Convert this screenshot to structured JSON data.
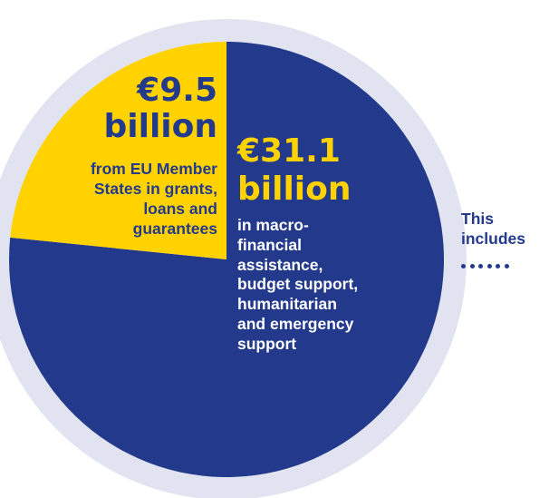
{
  "chart_data": {
    "type": "pie",
    "slices": [
      {
        "value": 9.5,
        "amount_label": "€9.5",
        "unit_label": "billion",
        "description_lines": [
          "from EU Member",
          "States in grants,",
          "loans and",
          "guarantees"
        ],
        "color": "#ffd200"
      },
      {
        "value": 31.1,
        "amount_label": "€31.1",
        "unit_label": "billion",
        "description_lines": [
          "in macro-",
          "financial",
          "assistance,",
          "budget support,",
          "humanitarian",
          "and emergency",
          "support"
        ],
        "color": "#233a8c"
      }
    ],
    "ring_color": "#e1e4f0"
  },
  "side_note": {
    "lines": [
      "This",
      "includes"
    ],
    "color": "#233a8c"
  }
}
